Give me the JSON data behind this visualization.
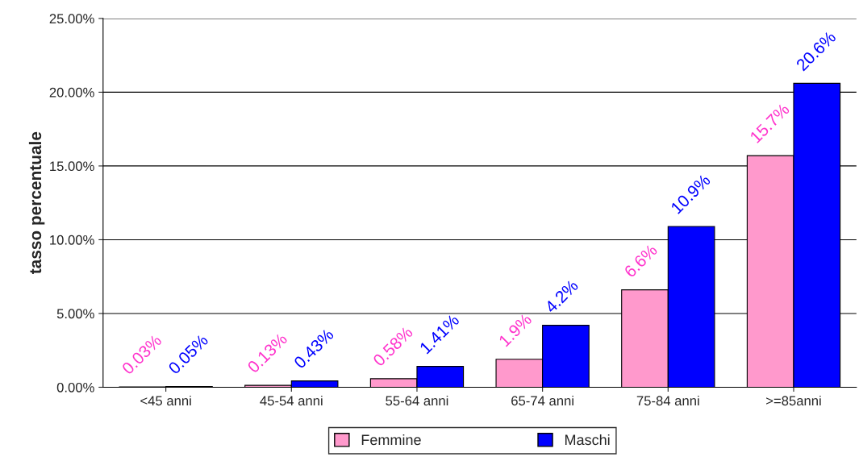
{
  "chart_data": {
    "type": "bar",
    "ylabel": "tasso percentuale",
    "categories": [
      "<45 anni",
      "45-54 anni",
      "55-64 anni",
      "65-74 anni",
      "75-84 anni",
      ">=85anni"
    ],
    "series": [
      {
        "name": "Femmine",
        "color": "#ff99cc",
        "values": [
          0.03,
          0.13,
          0.58,
          1.9,
          6.6,
          15.7
        ],
        "value_labels": [
          "0.03%",
          "0.13%",
          "0.58%",
          "1.9%",
          "6.6%",
          "15.7%"
        ]
      },
      {
        "name": "Maschi",
        "color": "#0000ff",
        "values": [
          0.05,
          0.43,
          1.41,
          4.2,
          10.9,
          20.6
        ],
        "value_labels": [
          "0.05%",
          "0.43%",
          "1.41%",
          "4.2%",
          "10.9%",
          "20.6%"
        ]
      }
    ],
    "ylim": [
      0,
      25
    ],
    "yticks": [
      {
        "value": 0,
        "label": "0.00%"
      },
      {
        "value": 5,
        "label": "5.00%"
      },
      {
        "value": 10,
        "label": "10.00%"
      },
      {
        "value": 15,
        "label": "15.00%"
      },
      {
        "value": 20,
        "label": "20.00%"
      },
      {
        "value": 25,
        "label": "25.00%"
      }
    ],
    "grid": "y",
    "legend": "bottom"
  }
}
